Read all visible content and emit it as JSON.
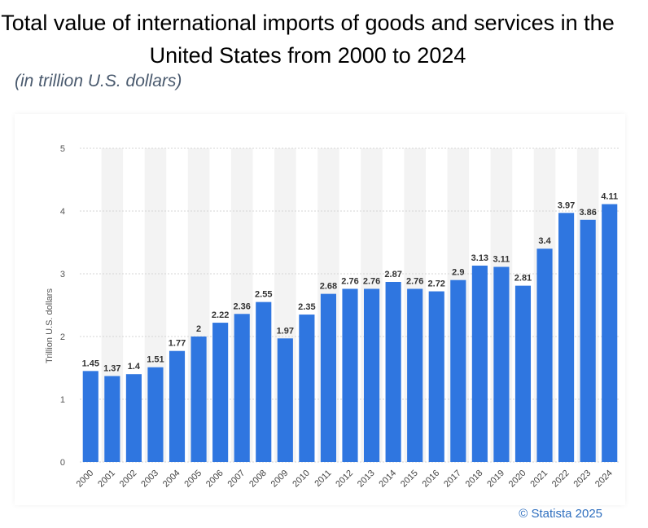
{
  "title": "Total value of international imports of goods and services in the United States from 2000 to 2024",
  "subtitle": "(in trillion U.S. dollars)",
  "credit": "© Statista 2025",
  "colors": {
    "bar": "#2f76e0",
    "band": "#f3f3f3",
    "grid": "#d6d6d6",
    "label": "#333333"
  },
  "chart_data": {
    "type": "bar",
    "categories": [
      "2000",
      "2001",
      "2002",
      "2003",
      "2004",
      "2005",
      "2006",
      "2007",
      "2008",
      "2009",
      "2010",
      "2011",
      "2012",
      "2013",
      "2014",
      "2015",
      "2016",
      "2017",
      "2018",
      "2019",
      "2020",
      "2021",
      "2022",
      "2023",
      "2024"
    ],
    "values": [
      1.45,
      1.37,
      1.4,
      1.51,
      1.77,
      2,
      2.22,
      2.36,
      2.55,
      1.97,
      2.35,
      2.68,
      2.76,
      2.76,
      2.87,
      2.76,
      2.72,
      2.9,
      3.13,
      3.11,
      2.81,
      3.4,
      3.97,
      3.86,
      4.11
    ],
    "value_labels": [
      "1.45",
      "1.37",
      "1.4",
      "1.51",
      "1.77",
      "2",
      "2.22",
      "2.36",
      "2.55",
      "1.97",
      "2.35",
      "2.68",
      "2.76",
      "2.76",
      "2.87",
      "2.76",
      "2.72",
      "2.9",
      "3.13",
      "3.11",
      "2.81",
      "3.4",
      "3.97",
      "3.86",
      "4.11"
    ],
    "ylabel": "Trillion U.S. dollars",
    "xlabel": "",
    "ylim": [
      0,
      5
    ],
    "yticks": [
      "0",
      "1",
      "2",
      "3",
      "4",
      "5"
    ],
    "grid": true,
    "legend": "none"
  }
}
